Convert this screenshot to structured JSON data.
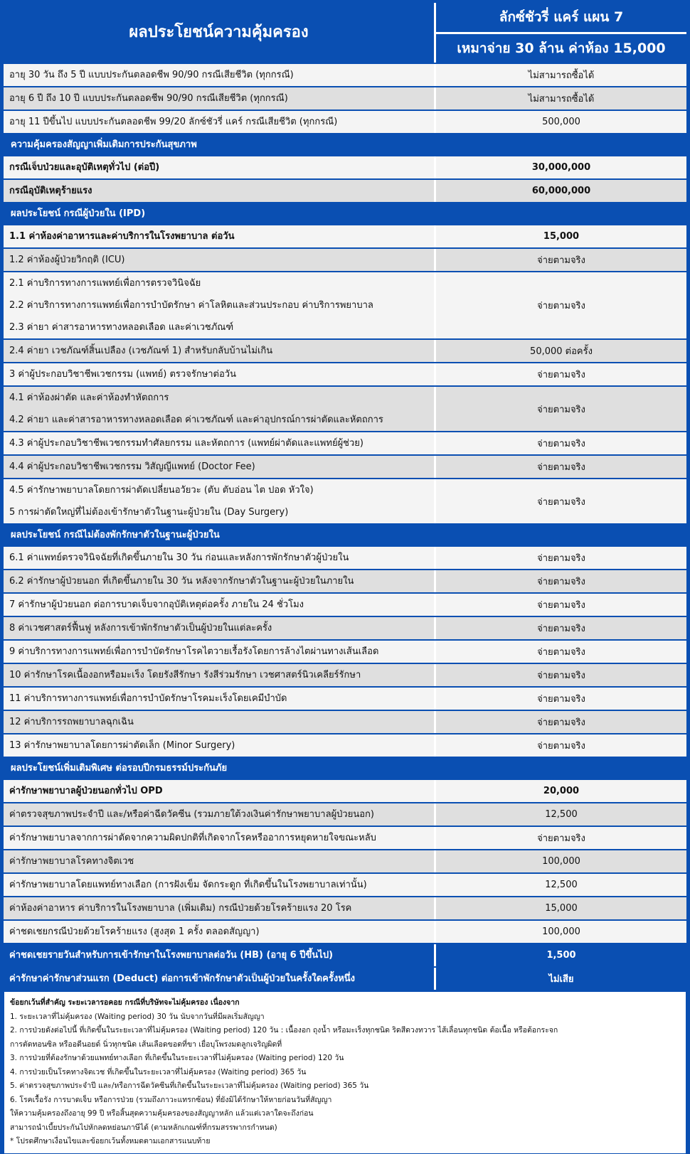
{
  "header": {
    "title": "ผลประโยชน์ความคุ้มครอง",
    "plan": "ลักซ์ชัวรี่ แคร์ แผน 7",
    "plan_sub": "เหมาจ่าย 30 ล้าน ค่าห้อง 15,000"
  },
  "blocks": [
    {
      "type": "rows",
      "rows": [
        {
          "lines": [
            "อายุ 30 วัน ถึง 5 ปี แบบประกันตลอดชีพ 90/90 กรณีเสียชีวิต (ทุกกรณี)"
          ],
          "value": "ไม่สามารถซื้อได้"
        },
        {
          "lines": [
            "อายุ 6 ปี ถึง 10 ปี   แบบประกันตลอดชีพ 90/90 กรณีเสียชีวิต (ทุกกรณี)"
          ],
          "value": "ไม่สามารถซื้อได้"
        },
        {
          "lines": [
            "อายุ 11 ปีขึ้นไป     แบบประกันตลอดชีพ 99/20 ลักซ์ชัวรี่ แคร์ กรณีเสียชีวิต (ทุกกรณี)"
          ],
          "value": "500,000"
        }
      ]
    },
    {
      "type": "section",
      "label": "ความคุ้มครองสัญญาเพิ่มเติมการประกันสุขภาพ"
    },
    {
      "type": "rows",
      "bold_label": true,
      "rows": [
        {
          "lines": [
            "กรณีเจ็บป่วยและอุบัติเหตุทั่วไป (ต่อปี)"
          ],
          "value": "30,000,000"
        },
        {
          "lines": [
            "กรณีอุบัติเหตุร้ายแรง"
          ],
          "value": "60,000,000"
        }
      ]
    },
    {
      "type": "section",
      "label": "ผลประโยชน์ กรณีผู้ป่วยใน (IPD)"
    },
    {
      "type": "rows",
      "rows": [
        {
          "lines": [
            "1.1 ค่าห้องค่าอาหารและค่าบริการในโรงพยาบาล ต่อวัน"
          ],
          "value": "15,000",
          "bold": true
        },
        {
          "lines": [
            "1.2 ค่าห้องผู้ป่วยวิกฤติ (ICU)"
          ],
          "value": "จ่ายตามจริง"
        },
        {
          "lines": [
            "2.1 ค่าบริการทางการแพทย์เพื่อการตรวจวินิจฉัย",
            "2.2 ค่าบริการทางการแพทย์เพื่อการบำบัดรักษา ค่าโลหิตและส่วนประกอบ ค่าบริการพยาบาล",
            "2.3 ค่ายา ค่าสารอาหารทางหลอดเลือด และค่าเวชภัณฑ์"
          ],
          "value": "จ่ายตามจริง"
        },
        {
          "lines": [
            "2.4 ค่ายา เวชภัณฑ์สิ้นเปลือง (เวชภัณฑ์ 1) สำหรับกลับบ้านไม่เกิน"
          ],
          "value": "50,000 ต่อครั้ง"
        },
        {
          "lines": [
            "3 ค่าผู้ประกอบวิชาชีพเวชกรรม (แพทย์) ตรวจรักษาต่อวัน"
          ],
          "value": "จ่ายตามจริง"
        },
        {
          "lines": [
            "4.1 ค่าห้องผ่าตัด และค่าห้องทำหัตถการ",
            "4.2 ค่ายา และค่าสารอาหารทางหลอดเลือด ค่าเวชภัณฑ์ และค่าอุปกรณ์การผ่าตัดและหัตถการ"
          ],
          "value": "จ่ายตามจริง"
        },
        {
          "lines": [
            "4.3 ค่าผู้ประกอบวิชาชีพเวชกรรมทำศัลยกรรม และหัตถการ (แพทย์ผ่าตัดและแพทย์ผู้ช่วย)"
          ],
          "value": "จ่ายตามจริง"
        },
        {
          "lines": [
            "4.4 ค่าผู้ประกอบวิชาชีพเวชกรรม วิสัญญีแพทย์ (Doctor Fee)"
          ],
          "value": "จ่ายตามจริง"
        },
        {
          "lines": [
            "4.5 ค่ารักษาพยาบาลโดยการผ่าตัดเปลี่ยนอวัยวะ (ตับ ตับอ่อน ไต ปอด หัวใจ)",
            "5 การผ่าตัดใหญ่ที่ไม่ต้องเข้ารักษาตัวในฐานะผู้ป่วยใน (Day Surgery)"
          ],
          "value": "จ่ายตามจริง"
        }
      ]
    },
    {
      "type": "section",
      "label": "ผลประโยชน์ กรณีไม่ต้องพักรักษาตัวในฐานะผู้ป่วยใน"
    },
    {
      "type": "rows",
      "rows": [
        {
          "lines": [
            "6.1 ค่าแพทย์ตรวจวินิจฉัยที่เกิดขึ้นภายใน 30 วัน ก่อนและหลังการพักรักษาตัวผู้ป่วยใน"
          ],
          "value": "จ่ายตามจริง"
        },
        {
          "lines": [
            "6.2 ค่ารักษาผู้ป่วยนอก ที่เกิดขึ้นภายใน 30 วัน หลังจากรักษาตัวในฐานะผู้ป่วยในภายใน"
          ],
          "value": "จ่ายตามจริง"
        },
        {
          "lines": [
            "7 ค่ารักษาผู้ป่วยนอก ต่อการบาดเจ็บจากอุบัติเหตุต่อครั้ง ภายใน 24 ชั่วโมง"
          ],
          "value": "จ่ายตามจริง"
        },
        {
          "lines": [
            "8 ค่าเวชศาสตร์ฟื้นฟู หลังการเข้าพักรักษาตัวเป็นผู้ป่วยในแต่ละครั้ง"
          ],
          "value": "จ่ายตามจริง"
        },
        {
          "lines": [
            "9 ค่าบริการทางการแพทย์เพื่อการบำบัดรักษาโรคไตวายเรื้อรังโดยการล้างไตผ่านทางเส้นเลือด"
          ],
          "value": "จ่ายตามจริง"
        },
        {
          "lines": [
            "10 ค่ารักษาโรคเนื้องอกหรือมะเร็ง โดยรังสีรักษา รังสีร่วมรักษา เวชศาสตร์นิวเคลียร์รักษา"
          ],
          "value": "จ่ายตามจริง"
        },
        {
          "lines": [
            "11 ค่าบริการทางการแพทย์เพื่อการบำบัดรักษาโรคมะเร็งโดยเคมีบำบัด"
          ],
          "value": "จ่ายตามจริง"
        },
        {
          "lines": [
            "12 ค่าบริการรถพยาบาลฉุกเฉิน"
          ],
          "value": "จ่ายตามจริง"
        },
        {
          "lines": [
            "13 ค่ารักษาพยาบาลโดยการผ่าตัดเล็ก (Minor Surgery)"
          ],
          "value": "จ่ายตามจริง"
        }
      ]
    },
    {
      "type": "section",
      "label": "ผลประโยชน์เพิ่มเติมพิเศษ ต่อรอบปีกรมธรรม์ประกันภัย"
    },
    {
      "type": "rows",
      "rows": [
        {
          "lines": [
            "ค่ารักษาพยาบาลผู้ป่วยนอกทั่วไป OPD"
          ],
          "value": "20,000",
          "bold": true
        },
        {
          "lines": [
            "ค่าตรวจสุขภาพประจำปี และ/หรือค่าฉีดวัคซีน (รวมภายใต้วงเงินค่ารักษาพยาบาลผู้ป่วยนอก)"
          ],
          "value": "12,500"
        },
        {
          "lines": [
            "ค่ารักษาพยาบาลจากการผ่าตัดจากความผิดปกติที่เกิดจากโรคหรืออาการหยุดหายใจขณะหลับ"
          ],
          "value": "จ่ายตามจริง"
        },
        {
          "lines": [
            "ค่ารักษาพยาบาลโรคทางจิตเวช"
          ],
          "value": "100,000"
        },
        {
          "lines": [
            "ค่ารักษาพยาบาลโดยแพทย์ทางเลือก (การฝังเข็ม จัดกระดูก ที่เกิดขึ้นในโรงพยาบาลเท่านั้น)"
          ],
          "value": "12,500"
        },
        {
          "lines": [
            "ค่าห้องค่าอาหาร ค่าบริการในโรงพยาบาล (เพิ่มเติม) กรณีป่วยด้วยโรคร้ายแรง 20 โรค"
          ],
          "value": "15,000"
        },
        {
          "lines": [
            "ค่าชดเชยกรณีป่วยด้วยโรคร้ายแรง (สูงสุด 1 ครั้ง ตลอดสัญญา)"
          ],
          "value": "100,000"
        },
        {
          "lines": [
            "ค่าชดเชยรายวันสำหรับการเข้ารักษาในโรงพยาบาลต่อวัน (HB) (อายุ 6 ปีขึ้นไป)"
          ],
          "value": "1,500",
          "blue": true
        },
        {
          "lines": [
            "ค่ารักษาค่ารักษาส่วนแรก (Deduct) ต่อการเข้าพักรักษาตัวเป็นผู้ป่วยในครั้งใดครั้งหนึ่ง"
          ],
          "value": "ไม่เสีย",
          "blue": true
        }
      ]
    }
  ],
  "notes": {
    "title": "ข้อยกเว้นที่สำคัญ ระยะเวลารอคอย กรณีที่บริษัทจะไม่คุ้มครอง เนื่องจาก",
    "lines": [
      "1. ระยะเวลาที่ไม่คุ้มครอง (Waiting period) 30 วัน นับจากวันที่มีผลเริ่มสัญญา",
      "2. การป่วยดังต่อไปนี้ ที่เกิดขึ้นในระยะเวลาที่ไม่คุ้มครอง (Waiting period) 120 วัน : เนื้องอก ถุงน้ำ หรือมะเร็งทุกชนิด ริดสีดวงทวาร ไส้เลื่อนทุกชนิด ต้อเนื้อ หรือต้อกระจก",
      "การตัดทอนซิล หรืออดีนอยด์ นิ่วทุกชนิด เส้นเลือดขอดที่ขา  เยื่อบุโพรงมดลูกเจริญผิดที่",
      "3. การป่วยที่ต้องรักษาด้วยแพทย์ทางเลือก ที่เกิดขึ้นในระยะเวลาที่ไม่คุ้มครอง (Waiting period) 120 วัน",
      "4. การป่วยเป็นโรคทางจิตเวช ที่เกิดขึ้นในระยะเวลาที่ไม่คุ้มครอง (Waiting period) 365 วัน",
      "5. ค่าตรวจสุขภาพประจำปี และ/หรือการฉีดวัคซีนที่เกิดขึ้นในระยะเวลาที่ไม่คุ้มครอง (Waiting period) 365 วัน",
      "6. โรคเรื้อรัง การบาดเจ็บ หรือการป่วย (รวมถึงภาวะแทรกซ้อน) ที่ยังมิได้รักษาให้หายก่อนวันที่สัญญา",
      "ให้ความคุ้มครองถึงอายุ 99 ปี หรือสิ้นสุดความคุ้มครองของสัญญาหลัก แล้วแต่เวลาใดจะถึงก่อน",
      "สามารถนำเบี้ยประกันไปหักลดหย่อนภาษีได้ (ตามหลักเกณฑ์ที่กรมสรรพากรกำหนด)",
      "* โปรดศึกษาเงื่อนไขและข้อยกเว้นทั้งหมดตามเอกสารแนบท้าย"
    ]
  },
  "colors": {
    "brand_blue": "#0a4fb2",
    "row_light": "#f4f4f4",
    "row_grey": "#dfdfdf"
  }
}
